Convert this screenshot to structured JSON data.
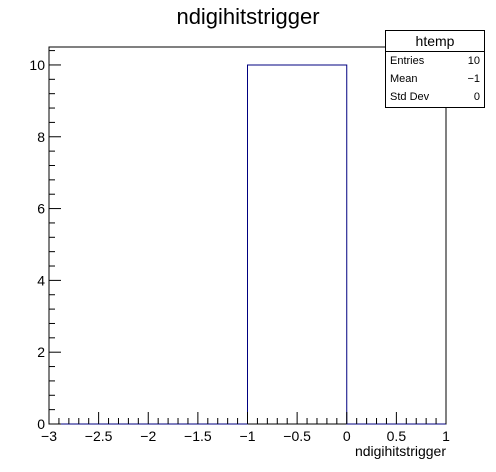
{
  "chart_data": {
    "type": "bar",
    "title": "ndigihitstrigger",
    "xlabel": "ndigihitstrigger",
    "ylabel": "",
    "xlim": [
      -3,
      1
    ],
    "ylim": [
      0,
      10.5
    ],
    "bins": [
      {
        "low": -3,
        "high": -2,
        "value": 0
      },
      {
        "low": -2,
        "high": -1,
        "value": 0
      },
      {
        "low": -1,
        "high": 0,
        "value": 10
      },
      {
        "low": 0,
        "high": 1,
        "value": 0
      }
    ],
    "x_ticks": [
      {
        "value": -3,
        "label": "−3"
      },
      {
        "value": -2.5,
        "label": "−2.5"
      },
      {
        "value": -2,
        "label": "−2"
      },
      {
        "value": -1.5,
        "label": "−1.5"
      },
      {
        "value": -1,
        "label": "−1"
      },
      {
        "value": -0.5,
        "label": "−0.5"
      },
      {
        "value": 0,
        "label": "0"
      },
      {
        "value": 0.5,
        "label": "0.5"
      },
      {
        "value": 1,
        "label": "1"
      }
    ],
    "y_ticks": [
      {
        "value": 0,
        "label": "0"
      },
      {
        "value": 2,
        "label": "2"
      },
      {
        "value": 4,
        "label": "4"
      },
      {
        "value": 6,
        "label": "6"
      },
      {
        "value": 8,
        "label": "8"
      },
      {
        "value": 10,
        "label": "10"
      }
    ],
    "line_color": "#000080",
    "grid": false
  },
  "stats": {
    "name": "htemp",
    "rows": [
      {
        "key": "Entries",
        "value": "10"
      },
      {
        "key": "Mean",
        "value": "−1"
      },
      {
        "key": "Std Dev",
        "value": "0"
      }
    ]
  }
}
